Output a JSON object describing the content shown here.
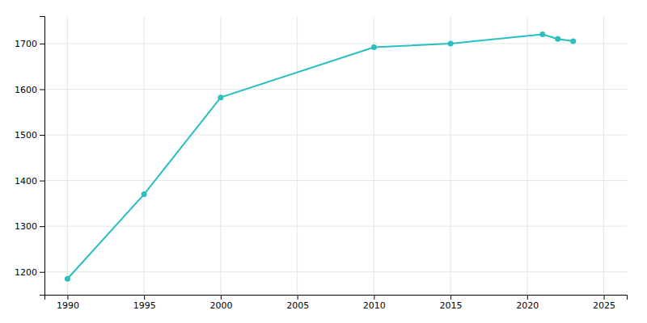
{
  "chart_data": {
    "type": "line",
    "x": [
      1990,
      1995,
      2000,
      2010,
      2015,
      2021,
      2022,
      2023
    ],
    "values": [
      1185,
      1370,
      1582,
      1692,
      1700,
      1720,
      1710,
      1705
    ],
    "color": "#2abfbf",
    "marker": "circle",
    "xlim": [
      1988.5,
      2026.5
    ],
    "ylim": [
      1150,
      1760
    ],
    "xticks": [
      1990,
      1995,
      2000,
      2005,
      2010,
      2015,
      2020,
      2025
    ],
    "yticks": [
      1200,
      1300,
      1400,
      1500,
      1600,
      1700
    ],
    "grid": true
  }
}
